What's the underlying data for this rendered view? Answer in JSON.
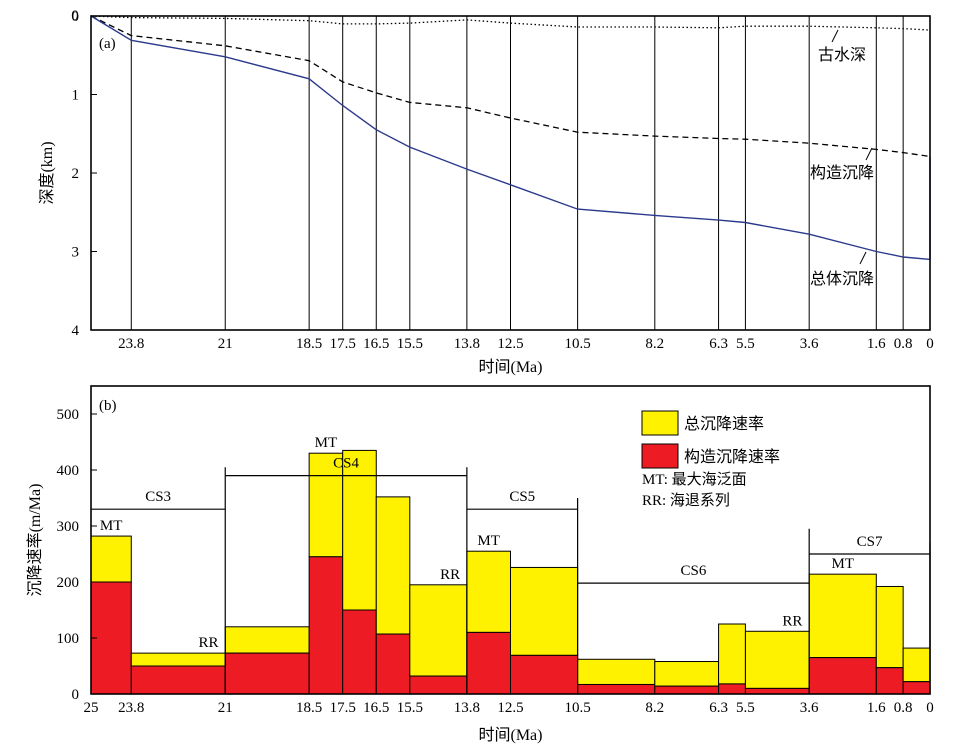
{
  "chart_data": [
    {
      "type": "line",
      "panel_label": "(a)",
      "xlabel": "时间(Ma)",
      "ylabel": "深度(km)",
      "xlim": [
        25,
        0
      ],
      "ylim": [
        0,
        4
      ],
      "x_ticks": [
        23.8,
        21,
        18.5,
        17.5,
        16.5,
        15.5,
        13.8,
        12.5,
        10.5,
        8.2,
        6.3,
        5.5,
        3.6,
        1.6,
        0.8,
        0
      ],
      "x_tick_labels": [
        "23.8",
        "21",
        "18.5",
        "17.5",
        "16.5",
        "15.5",
        "13.8",
        "12.5",
        "10.5",
        "8.2",
        "6.3",
        "5.5",
        "3.6",
        "1.6",
        "0.8",
        "0"
      ],
      "y_ticks": [
        0,
        1,
        2,
        3,
        4
      ],
      "y_tick_labels": [
        "0",
        "1",
        "2",
        "3",
        "4"
      ],
      "vertical_gridlines": true,
      "series": [
        {
          "name": "古水深",
          "color": "#000000",
          "style": "dotted",
          "points": [
            [
              25,
              0
            ],
            [
              23.8,
              0.02
            ],
            [
              21,
              0.03
            ],
            [
              18.5,
              0.06
            ],
            [
              17.5,
              0.1
            ],
            [
              16.5,
              0.1
            ],
            [
              15.5,
              0.09
            ],
            [
              13.8,
              0.05
            ],
            [
              12.5,
              0.09
            ],
            [
              10.5,
              0.14
            ],
            [
              8.2,
              0.14
            ],
            [
              6.3,
              0.15
            ],
            [
              5.5,
              0.13
            ],
            [
              3.6,
              0.13
            ],
            [
              1.6,
              0.15
            ],
            [
              0.8,
              0.16
            ],
            [
              0,
              0.18
            ]
          ]
        },
        {
          "name": "构造沉降",
          "color": "#000000",
          "style": "dashed",
          "points": [
            [
              25,
              0
            ],
            [
              23.8,
              0.25
            ],
            [
              21,
              0.38
            ],
            [
              18.5,
              0.57
            ],
            [
              17.5,
              0.84
            ],
            [
              16.5,
              0.98
            ],
            [
              15.5,
              1.1
            ],
            [
              13.8,
              1.17
            ],
            [
              12.5,
              1.3
            ],
            [
              10.5,
              1.48
            ],
            [
              8.2,
              1.53
            ],
            [
              6.3,
              1.56
            ],
            [
              5.5,
              1.57
            ],
            [
              3.6,
              1.62
            ],
            [
              1.6,
              1.7
            ],
            [
              0.8,
              1.74
            ],
            [
              0,
              1.79
            ]
          ]
        },
        {
          "name": "总体沉降",
          "color": "#2b3a8c",
          "style": "solid",
          "points": [
            [
              25,
              0
            ],
            [
              23.8,
              0.31
            ],
            [
              21,
              0.52
            ],
            [
              18.5,
              0.8
            ],
            [
              17.5,
              1.14
            ],
            [
              16.5,
              1.45
            ],
            [
              15.5,
              1.67
            ],
            [
              13.8,
              1.95
            ],
            [
              12.5,
              2.15
            ],
            [
              10.5,
              2.46
            ],
            [
              8.2,
              2.54
            ],
            [
              6.3,
              2.6
            ],
            [
              5.5,
              2.63
            ],
            [
              3.6,
              2.78
            ],
            [
              1.6,
              3.0
            ],
            [
              0.8,
              3.07
            ],
            [
              0,
              3.1
            ]
          ]
        }
      ],
      "annotations": [
        {
          "text": "古水深",
          "series": "古水深"
        },
        {
          "text": "构造沉降",
          "series": "构造沉降"
        },
        {
          "text": "总体沉降",
          "series": "总体沉降"
        }
      ]
    },
    {
      "type": "bar",
      "panel_label": "(b)",
      "xlabel": "时间(Ma)",
      "ylabel": "沉降速率(m/Ma)",
      "xlim": [
        25,
        0
      ],
      "ylim": [
        0,
        550
      ],
      "x_ticks": [
        25,
        23.8,
        21,
        18.5,
        17.5,
        16.5,
        15.5,
        13.8,
        12.5,
        10.5,
        8.2,
        6.3,
        5.5,
        3.6,
        1.6,
        0.8,
        0
      ],
      "x_tick_labels": [
        "25",
        "23.8",
        "21",
        "18.5",
        "17.5",
        "16.5",
        "15.5",
        "13.8",
        "12.5",
        "10.5",
        "8.2",
        "6.3",
        "5.5",
        "3.6",
        "1.6",
        "0.8",
        "0"
      ],
      "y_ticks": [
        0,
        100,
        200,
        300,
        400,
        500
      ],
      "y_tick_labels": [
        "0",
        "100",
        "200",
        "300",
        "400",
        "500"
      ],
      "intervals": [
        {
          "from": 25,
          "to": 23.8,
          "total": 282,
          "tectonic": 200
        },
        {
          "from": 23.8,
          "to": 21,
          "total": 73,
          "tectonic": 50
        },
        {
          "from": 21,
          "to": 18.5,
          "total": 120,
          "tectonic": 73
        },
        {
          "from": 18.5,
          "to": 17.5,
          "total": 430,
          "tectonic": 245
        },
        {
          "from": 17.5,
          "to": 16.5,
          "total": 435,
          "tectonic": 150
        },
        {
          "from": 16.5,
          "to": 15.5,
          "total": 352,
          "tectonic": 107
        },
        {
          "from": 15.5,
          "to": 13.8,
          "total": 195,
          "tectonic": 32
        },
        {
          "from": 13.8,
          "to": 12.5,
          "total": 255,
          "tectonic": 110
        },
        {
          "from": 12.5,
          "to": 10.5,
          "total": 226,
          "tectonic": 69
        },
        {
          "from": 10.5,
          "to": 8.2,
          "total": 62,
          "tectonic": 17
        },
        {
          "from": 8.2,
          "to": 6.3,
          "total": 58,
          "tectonic": 14
        },
        {
          "from": 6.3,
          "to": 5.5,
          "total": 125,
          "tectonic": 18
        },
        {
          "from": 5.5,
          "to": 3.6,
          "total": 112,
          "tectonic": 10
        },
        {
          "from": 3.6,
          "to": 1.6,
          "total": 214,
          "tectonic": 65
        },
        {
          "from": 1.6,
          "to": 0.8,
          "total": 192,
          "tectonic": 47
        },
        {
          "from": 0.8,
          "to": 0,
          "total": 82,
          "tectonic": 22
        }
      ],
      "legend": {
        "placement": "top-right",
        "entries": [
          {
            "label": "总沉降速率",
            "color": "#fff200"
          },
          {
            "label": "构造沉降速率",
            "color": "#ed1c24"
          }
        ],
        "notes": [
          "MT: 最大海泛面",
          "RR: 海退系列"
        ]
      },
      "sequences": [
        {
          "name": "CS3",
          "from": 25,
          "to": 21
        },
        {
          "name": "CS4",
          "from": 21,
          "to": 13.8
        },
        {
          "name": "CS5",
          "from": 13.8,
          "to": 10.5
        },
        {
          "name": "CS6",
          "from": 10.5,
          "to": 3.6
        },
        {
          "name": "CS7",
          "from": 3.6,
          "to": 0
        }
      ],
      "sequence_line_values": {
        "CS3": 330,
        "CS4": 390,
        "CS5": 330,
        "CS6": 198,
        "CS7": 250
      },
      "boundary_values": [
        {
          "x": 21,
          "top": 405
        },
        {
          "x": 13.8,
          "top": 405
        },
        {
          "x": 10.5,
          "top": 350
        },
        {
          "x": 3.6,
          "top": 295
        },
        {
          "x": 0,
          "top": 270
        }
      ],
      "markers": [
        {
          "text": "MT",
          "x": 24.4,
          "value": 282
        },
        {
          "text": "RR",
          "x": 21.5,
          "value": 73
        },
        {
          "text": "MT",
          "x": 18.0,
          "value": 430
        },
        {
          "text": "RR",
          "x": 14.3,
          "value": 195
        },
        {
          "text": "MT",
          "x": 13.15,
          "value": 255
        },
        {
          "text": "RR",
          "x": 4.1,
          "value": 112
        },
        {
          "text": "MT",
          "x": 2.6,
          "value": 214
        }
      ]
    }
  ]
}
